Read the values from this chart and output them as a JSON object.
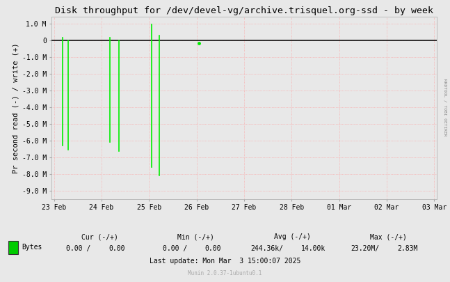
{
  "title": "Disk throughput for /dev/devel-vg/archive.trisquel.org-ssd - by week",
  "ylabel": "Pr second read (-) / write (+)",
  "background_color": "#e8e8e8",
  "plot_bg_color": "#e8e8e8",
  "grid_color": "#ff9999",
  "line_color": "#00ee00",
  "zero_line_color": "#111111",
  "ylim": [
    -9500000,
    1400000
  ],
  "yticks": [
    -9000000,
    -8000000,
    -7000000,
    -6000000,
    -5000000,
    -4000000,
    -3000000,
    -2000000,
    -1000000,
    0,
    1000000
  ],
  "ytick_labels": [
    "-9.0 M",
    "-8.0 M",
    "-7.0 M",
    "-6.0 M",
    "-5.0 M",
    "-4.0 M",
    "-3.0 M",
    "-2.0 M",
    "-1.0 M",
    "0",
    "1.0 M"
  ],
  "xtick_labels": [
    "23 Feb",
    "24 Feb",
    "25 Feb",
    "26 Feb",
    "27 Feb",
    "28 Feb",
    "01 Mar",
    "02 Mar",
    "03 Mar"
  ],
  "munin_version": "Munin 2.0.37-1ubuntu0.1",
  "right_label": "RRDTOOL / TOBI OETIKER",
  "spike_data": [
    [
      0.18,
      180000,
      -6300000
    ],
    [
      0.3,
      0,
      -6550000
    ],
    [
      1.18,
      160000,
      -6100000
    ],
    [
      1.36,
      0,
      -6650000
    ],
    [
      2.05,
      960000,
      -7600000
    ],
    [
      2.22,
      280000,
      -8100000
    ],
    [
      3.05,
      -170000,
      -170000
    ]
  ],
  "n_days": 9,
  "legend_label": "Bytes",
  "legend_color": "#00cc00",
  "cur_neg": "0.00",
  "cur_pos": "0.00",
  "min_neg": "0.00",
  "min_pos": "0.00",
  "avg_neg": "244.36k",
  "avg_pos": "14.00k",
  "max_neg": "23.20M",
  "max_pos": "2.83M",
  "last_update": "Last update: Mon Mar  3 15:00:07 2025"
}
